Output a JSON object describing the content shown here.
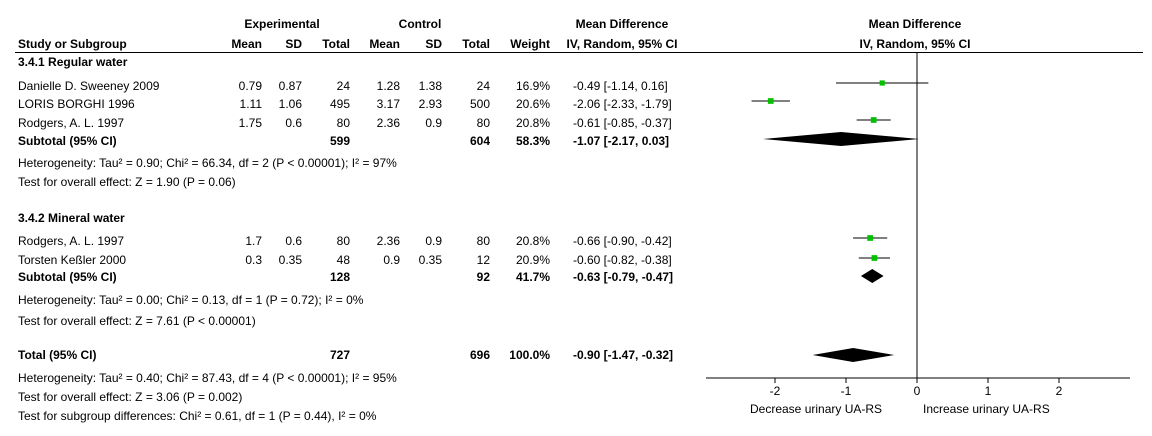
{
  "header": {
    "exp_group": "Experimental",
    "ctrl_group": "Control",
    "md_title": "Mean Difference",
    "plot_title": "Mean Difference",
    "col_study": "Study or Subgroup",
    "col_mean_e": "Mean",
    "col_sd_e": "SD",
    "col_total_e": "Total",
    "col_mean_c": "Mean",
    "col_sd_c": "SD",
    "col_total_c": "Total",
    "col_weight": "Weight",
    "md_method": "IV, Random, 95% CI",
    "plot_method": "IV, Random, 95% CI"
  },
  "groups": [
    {
      "title": "3.4.1 Regular water",
      "studies": [
        {
          "name": "Danielle D. Sweeney  2009",
          "mean_e": "0.79",
          "sd_e": "0.87",
          "total_e": "24",
          "mean_c": "1.28",
          "sd_c": "1.38",
          "total_c": "24",
          "weight": "16.9%",
          "ci": "-0.49 [-1.14, 0.16]"
        },
        {
          "name": "LORIS BORGHI 1996",
          "mean_e": "1.11",
          "sd_e": "1.06",
          "total_e": "495",
          "mean_c": "3.17",
          "sd_c": "2.93",
          "total_c": "500",
          "weight": "20.6%",
          "ci": "-2.06 [-2.33, -1.79]"
        },
        {
          "name": "Rodgers, A. L. 1997",
          "mean_e": "1.75",
          "sd_e": "0.6",
          "total_e": "80",
          "mean_c": "2.36",
          "sd_c": "0.9",
          "total_c": "80",
          "weight": "20.8%",
          "ci": "-0.61 [-0.85, -0.37]"
        }
      ],
      "subtotal": {
        "label": "Subtotal (95% CI)",
        "total_e": "599",
        "total_c": "604",
        "weight": "58.3%",
        "ci": "-1.07 [-2.17, 0.03]"
      },
      "heterogeneity": "Heterogeneity: Tau² = 0.90; Chi² = 66.34, df = 2 (P < 0.00001); I² = 97%",
      "overall": "Test for overall effect: Z = 1.90 (P = 0.06)"
    },
    {
      "title": "3.4.2 Mineral water",
      "studies": [
        {
          "name": "Rodgers, A. L. 1997",
          "mean_e": "1.7",
          "sd_e": "0.6",
          "total_e": "80",
          "mean_c": "2.36",
          "sd_c": "0.9",
          "total_c": "80",
          "weight": "20.8%",
          "ci": "-0.66 [-0.90, -0.42]"
        },
        {
          "name": "Torsten Keßler 2000",
          "mean_e": "0.3",
          "sd_e": "0.35",
          "total_e": "48",
          "mean_c": "0.9",
          "sd_c": "0.35",
          "total_c": "12",
          "weight": "20.9%",
          "ci": "-0.60 [-0.82, -0.38]"
        }
      ],
      "subtotal": {
        "label": "Subtotal (95% CI)",
        "total_e": "128",
        "total_c": "92",
        "weight": "41.7%",
        "ci": "-0.63 [-0.79, -0.47]"
      },
      "heterogeneity": "Heterogeneity: Tau² = 0.00; Chi² = 0.13, df = 1 (P = 0.72); I² = 0%",
      "overall": "Test for overall effect: Z = 7.61 (P < 0.00001)"
    }
  ],
  "total": {
    "label": "Total (95% CI)",
    "total_e": "727",
    "total_c": "696",
    "weight": "100.0%",
    "ci": "-0.90 [-1.47, -0.32]",
    "heterogeneity": "Heterogeneity: Tau² = 0.40; Chi² = 87.43, df = 4 (P < 0.00001); I² = 95%",
    "overall": "Test for overall effect: Z = 3.06 (P = 0.002)",
    "subgroup": "Test for subgroup differences: Chi² = 0.61, df = 1 (P = 0.44), I² = 0%"
  },
  "axis": {
    "left_label": "Decrease urinary UA-RS",
    "right_label": "Increase urinary UA-RS"
  },
  "colors": {
    "marker": "#00c000",
    "diamond": "#000000",
    "line": "#000000"
  },
  "chart_data": {
    "type": "forest",
    "xlim": [
      -3,
      3
    ],
    "ticks": [
      -2,
      -1,
      0,
      1,
      2
    ],
    "tick_labels": [
      "-2",
      "-1",
      "0",
      "1",
      "2"
    ],
    "studies": [
      {
        "name": "Danielle D. Sweeney  2009",
        "group": "3.4.1 Regular water",
        "md": -0.49,
        "lo": -1.14,
        "hi": 0.16,
        "weight": 16.9
      },
      {
        "name": "LORIS BORGHI 1996",
        "group": "3.4.1 Regular water",
        "md": -2.06,
        "lo": -2.33,
        "hi": -1.79,
        "weight": 20.6
      },
      {
        "name": "Rodgers, A. L. 1997",
        "group": "3.4.1 Regular water",
        "md": -0.61,
        "lo": -0.85,
        "hi": -0.37,
        "weight": 20.8
      },
      {
        "name": "Rodgers, A. L. 1997",
        "group": "3.4.2 Mineral water",
        "md": -0.66,
        "lo": -0.9,
        "hi": -0.42,
        "weight": 20.8
      },
      {
        "name": "Torsten Keßler 2000",
        "group": "3.4.2 Mineral water",
        "md": -0.6,
        "lo": -0.82,
        "hi": -0.38,
        "weight": 20.9
      }
    ],
    "summaries": [
      {
        "name": "Subtotal (95% CI)",
        "group": "3.4.1 Regular water",
        "md": -1.07,
        "lo": -2.17,
        "hi": 0.03
      },
      {
        "name": "Subtotal (95% CI)",
        "group": "3.4.2 Mineral water",
        "md": -0.63,
        "lo": -0.79,
        "hi": -0.47
      },
      {
        "name": "Total (95% CI)",
        "md": -0.9,
        "lo": -1.47,
        "hi": -0.32
      }
    ]
  }
}
